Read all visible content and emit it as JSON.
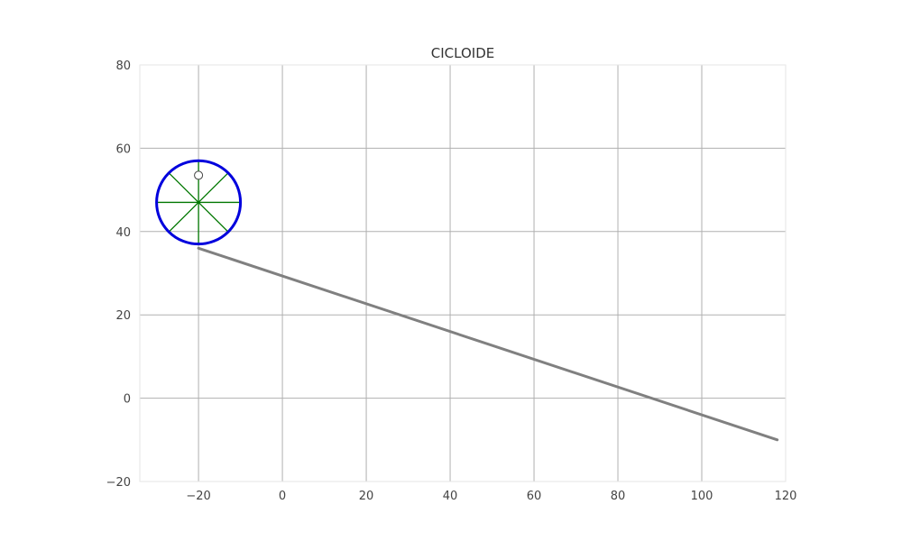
{
  "chart_data": {
    "type": "line",
    "title": "CICLOIDE",
    "xlabel": "",
    "ylabel": "",
    "xlim": [
      -34,
      120
    ],
    "ylim": [
      -20,
      80
    ],
    "xticks": [
      -20,
      0,
      20,
      40,
      60,
      80,
      100,
      120
    ],
    "yticks": [
      -20,
      0,
      20,
      40,
      60,
      80
    ],
    "xtick_labels": [
      "−20",
      "0",
      "20",
      "40",
      "60",
      "80",
      "100",
      "120"
    ],
    "ytick_labels": [
      "−20",
      "0",
      "20",
      "40",
      "60",
      "80"
    ],
    "grid": true,
    "ramp": {
      "x": [
        -20,
        118
      ],
      "y": [
        36,
        -10
      ],
      "color": "#808080"
    },
    "wheel": {
      "cx": -20,
      "cy": 47,
      "r": 10,
      "color": "#0000dd"
    },
    "spokes": {
      "count": 8,
      "color": "#007700"
    },
    "tracer_point": {
      "x": -20,
      "y": 53.5
    },
    "colors": {
      "grid": "#b0b0b0",
      "axis": "#cccccc"
    }
  }
}
